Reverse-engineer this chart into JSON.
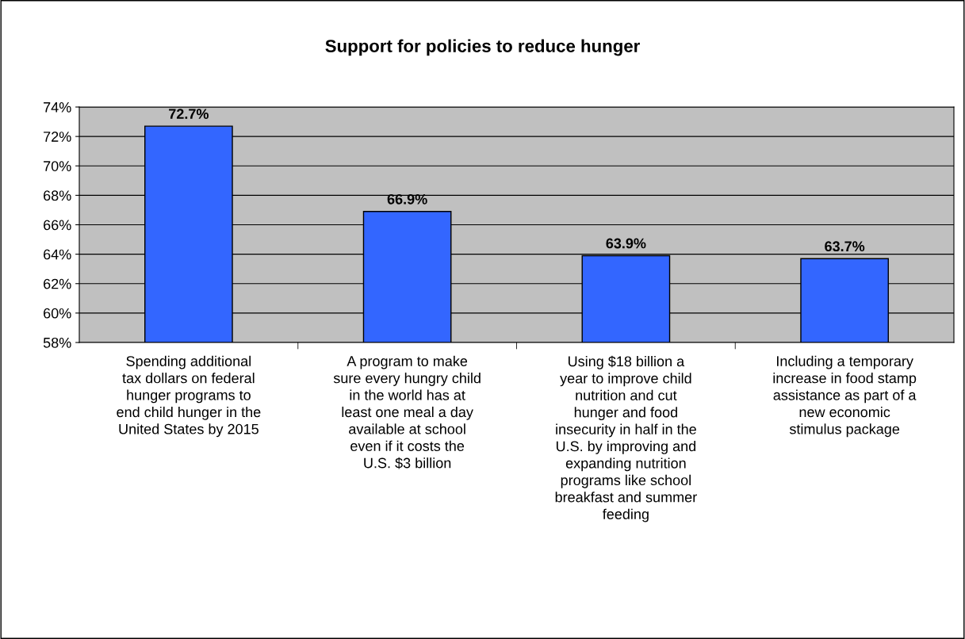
{
  "chart_data": {
    "type": "bar",
    "title": "Support for policies to reduce hunger",
    "categories": [
      "Spending additional\ntax dollars on federal\nhunger programs to\nend child hunger in the\nUnited States by 2015",
      "A program to make\nsure every hungry child\nin the world has at\nleast one meal a day\navailable at school\neven if it costs the\nU.S. $3 billion",
      "Using $18 billion a\nyear to improve child\nnutrition and cut\nhunger and food\ninsecurity in half in the\nU.S. by improving and\nexpanding nutrition\nprograms like school\nbreakfast and summer\nfeeding",
      "Including a temporary\nincrease in food stamp\nassistance as part of a\nnew economic\nstimulus package"
    ],
    "values": [
      72.7,
      66.9,
      63.9,
      63.7
    ],
    "value_labels": [
      "72.7%",
      "66.9%",
      "63.9%",
      "63.7%"
    ],
    "color": "#3366ff",
    "ylim": [
      58,
      74
    ],
    "yticks": [
      {
        "value": 58,
        "label": "58%"
      },
      {
        "value": 60,
        "label": "60%"
      },
      {
        "value": 62,
        "label": "62%"
      },
      {
        "value": 64,
        "label": "64%"
      },
      {
        "value": 66,
        "label": "66%"
      },
      {
        "value": 68,
        "label": "68%"
      },
      {
        "value": 70,
        "label": "70%"
      },
      {
        "value": 72,
        "label": "72%"
      },
      {
        "value": 74,
        "label": "74%"
      }
    ],
    "grid": "y",
    "legend": false
  }
}
